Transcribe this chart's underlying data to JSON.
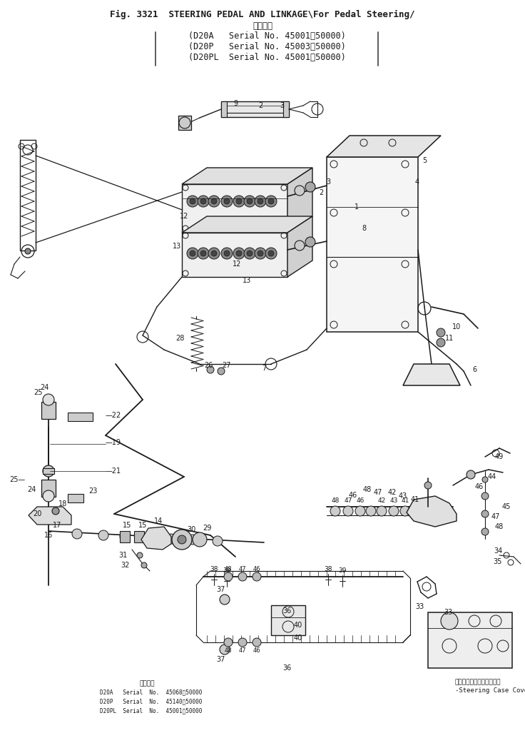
{
  "title_line1": "Fig. 3321  STEERING PEDAL AND LINKAGE\\For Pedal Steering/",
  "title_line2": "適用号機",
  "title_line3": "(D20A   Serial No. 45001～50000)",
  "title_line4": "(D20P   Serial No. 45003～50000)",
  "title_line5": "(D20PL  Serial No. 45001～50000)",
  "background_color": "#ffffff",
  "line_color": "#1a1a1a",
  "fig_width": 7.36,
  "fig_height": 10.27,
  "dpi": 100,
  "bottom_note_title": "適用号機",
  "bottom_note_lines": [
    "D20A   Serial  No.  45068～50000",
    "D20P   Serial  No.  45140～50000",
    "D20PL  Serial  No.  45001～50000"
  ],
  "steering_case_japanese": "ステアリングケースカバー",
  "steering_case_english": "-Steering Case Cover"
}
